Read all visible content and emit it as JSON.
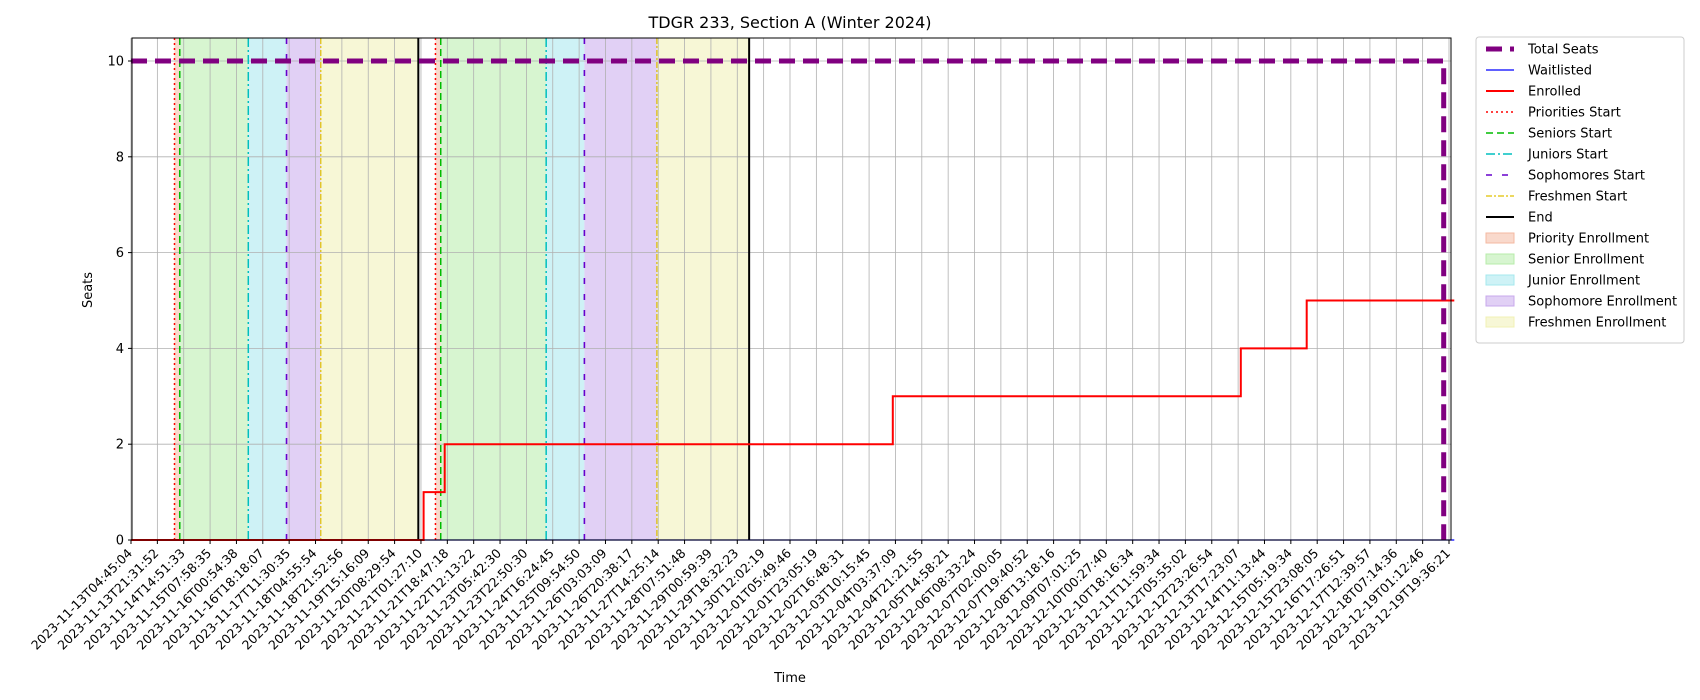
{
  "chart_data": {
    "type": "line",
    "title": "TDGR 233, Section A (Winter 2024)",
    "xlabel": "Time",
    "ylabel": "Seats",
    "ylim": [
      0,
      10.5
    ],
    "yticks": [
      0,
      2,
      4,
      6,
      8,
      10
    ],
    "grid": true,
    "legend_position": "outside-right",
    "x_tick_labels": [
      "2023-11-13T04:45:04",
      "2023-11-13T21:31:52",
      "2023-11-14T14:51:33",
      "2023-11-15T07:58:35",
      "2023-11-16T00:54:38",
      "2023-11-16T18:18:07",
      "2023-11-17T11:30:35",
      "2023-11-18T04:55:54",
      "2023-11-18T21:52:56",
      "2023-11-19T15:16:09",
      "2023-11-20T08:29:54",
      "2023-11-21T01:27:10",
      "2023-11-21T18:47:18",
      "2023-11-22T12:13:22",
      "2023-11-23T05:42:30",
      "2023-11-23T22:50:30",
      "2023-11-24T16:24:45",
      "2023-11-25T09:54:50",
      "2023-11-26T03:03:09",
      "2023-11-26T20:38:17",
      "2023-11-27T14:25:14",
      "2023-11-28T07:51:48",
      "2023-11-29T00:59:39",
      "2023-11-29T18:32:23",
      "2023-11-30T12:02:19",
      "2023-12-01T05:49:46",
      "2023-12-01T23:05:19",
      "2023-12-02T16:48:31",
      "2023-12-03T10:15:45",
      "2023-12-04T03:37:09",
      "2023-12-04T21:21:55",
      "2023-12-05T14:58:21",
      "2023-12-06T08:33:24",
      "2023-12-07T02:00:05",
      "2023-12-07T19:40:52",
      "2023-12-08T13:18:16",
      "2023-12-09T07:01:25",
      "2023-12-10T00:27:40",
      "2023-12-10T18:16:34",
      "2023-12-11T11:59:34",
      "2023-12-12T05:55:02",
      "2023-12-12T23:26:54",
      "2023-12-13T17:23:07",
      "2023-12-14T11:13:44",
      "2023-12-15T05:19:34",
      "2023-12-15T23:08:05",
      "2023-12-16T17:26:51",
      "2023-12-17T12:39:57",
      "2023-12-18T07:14:36",
      "2023-12-19T01:12:46",
      "2023-12-19T19:36:21"
    ],
    "series": [
      {
        "name": "Total Seats",
        "color": "#800080",
        "style": "dashed-thick",
        "points": [
          [
            0,
            10
          ],
          [
            49.8,
            10
          ],
          [
            49.8,
            0
          ]
        ]
      },
      {
        "name": "Waitlisted",
        "color": "#0000ff",
        "style": "solid-thin",
        "points": [
          [
            0,
            0
          ],
          [
            50.2,
            0
          ]
        ]
      },
      {
        "name": "Enrolled",
        "color": "#ff0000",
        "style": "solid",
        "points": [
          [
            0,
            0
          ],
          [
            11.1,
            0
          ],
          [
            11.1,
            1
          ],
          [
            11.9,
            1
          ],
          [
            11.9,
            2
          ],
          [
            28.9,
            2
          ],
          [
            28.9,
            3
          ],
          [
            42.1,
            3
          ],
          [
            42.1,
            4
          ],
          [
            44.6,
            4
          ],
          [
            44.6,
            5
          ],
          [
            50.2,
            5
          ]
        ]
      }
    ],
    "vlines": [
      {
        "name": "Priorities Start",
        "color": "#ff0000",
        "style": "dotted",
        "x": [
          1.65,
          11.55
        ]
      },
      {
        "name": "Seniors Start",
        "color": "#00bb00",
        "style": "dashed",
        "x": [
          1.85,
          11.75
        ]
      },
      {
        "name": "Juniors Start",
        "color": "#00bfbf",
        "style": "dashdot",
        "x": [
          4.45,
          15.75
        ]
      },
      {
        "name": "Sophomores Start",
        "color": "#6600cc",
        "style": "loosedash",
        "x": [
          5.9,
          17.2
        ]
      },
      {
        "name": "Freshmen Start",
        "color": "#e0c000",
        "style": "dashdot-thin",
        "x": [
          7.2,
          19.95
        ]
      },
      {
        "name": "End",
        "color": "#000000",
        "style": "solid",
        "x": [
          10.9,
          23.45
        ]
      }
    ],
    "spans": [
      {
        "name": "Priority Enrollment",
        "color": "#f4b9a2",
        "ranges": [
          [
            1.65,
            1.85
          ],
          [
            11.55,
            11.75
          ]
        ]
      },
      {
        "name": "Senior Enrollment",
        "color": "#b7ecaa",
        "ranges": [
          [
            1.85,
            4.45
          ],
          [
            11.75,
            15.75
          ]
        ]
      },
      {
        "name": "Junior Enrollment",
        "color": "#a5e8ee",
        "ranges": [
          [
            4.45,
            5.9
          ],
          [
            15.75,
            17.2
          ]
        ]
      },
      {
        "name": "Sophomore Enrollment",
        "color": "#c8a9ec",
        "ranges": [
          [
            5.9,
            7.2
          ],
          [
            17.2,
            19.95
          ]
        ]
      },
      {
        "name": "Freshmen Enrollment",
        "color": "#f0f0b4",
        "ranges": [
          [
            7.2,
            10.9
          ],
          [
            19.95,
            23.45
          ]
        ]
      }
    ],
    "legend": [
      {
        "label": "Total Seats",
        "kind": "line",
        "color": "#800080",
        "style": "dashed-thick"
      },
      {
        "label": "Waitlisted",
        "kind": "line",
        "color": "#0000ff",
        "style": "solid-thin"
      },
      {
        "label": "Enrolled",
        "kind": "line",
        "color": "#ff0000",
        "style": "solid"
      },
      {
        "label": "Priorities Start",
        "kind": "line",
        "color": "#ff0000",
        "style": "dotted"
      },
      {
        "label": "Seniors Start",
        "kind": "line",
        "color": "#00bb00",
        "style": "dashed"
      },
      {
        "label": "Juniors Start",
        "kind": "line",
        "color": "#00bfbf",
        "style": "dashdot"
      },
      {
        "label": "Sophomores Start",
        "kind": "line",
        "color": "#6600cc",
        "style": "loosedash"
      },
      {
        "label": "Freshmen Start",
        "kind": "line",
        "color": "#e0c000",
        "style": "dashdot-thin"
      },
      {
        "label": "End",
        "kind": "line",
        "color": "#000000",
        "style": "solid"
      },
      {
        "label": "Priority Enrollment",
        "kind": "patch",
        "color": "#f4b9a2"
      },
      {
        "label": "Senior Enrollment",
        "kind": "patch",
        "color": "#b7ecaa"
      },
      {
        "label": "Junior Enrollment",
        "kind": "patch",
        "color": "#a5e8ee"
      },
      {
        "label": "Sophomore Enrollment",
        "kind": "patch",
        "color": "#c8a9ec"
      },
      {
        "label": "Freshmen Enrollment",
        "kind": "patch",
        "color": "#f0f0b4"
      }
    ]
  }
}
